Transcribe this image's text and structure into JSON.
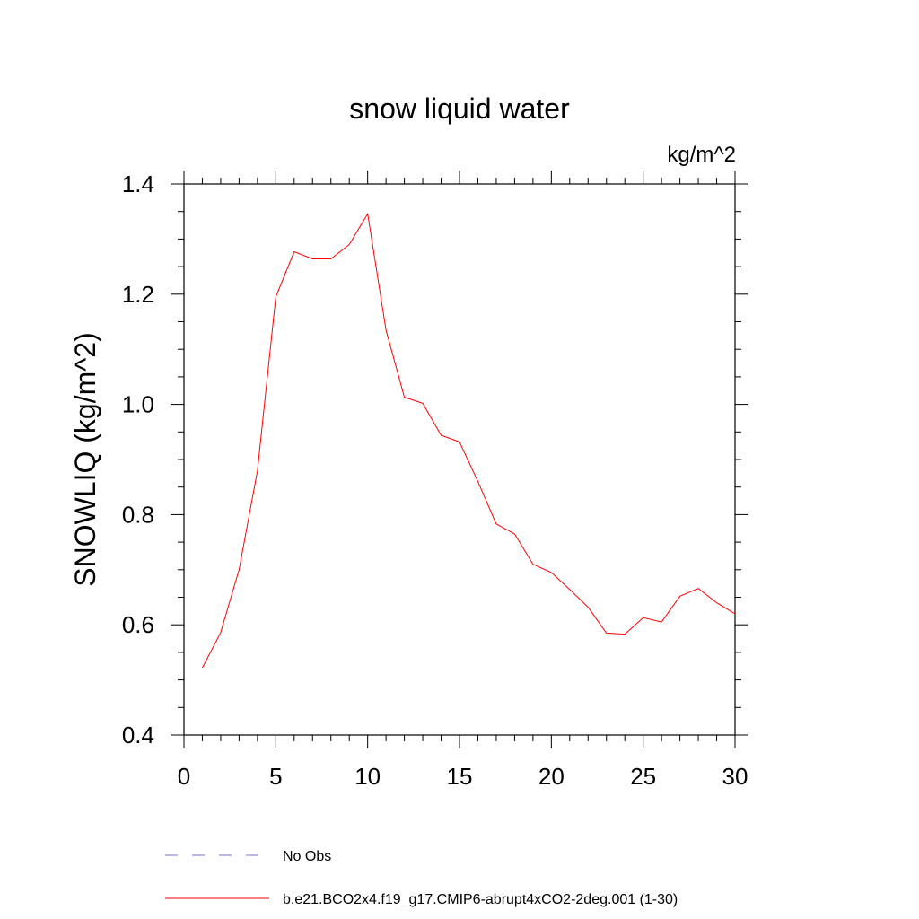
{
  "chart_data": {
    "type": "line",
    "title": "snow liquid water",
    "units_label": "kg/m^2",
    "ylabel": "SNOWLIQ  (kg/m^2)",
    "xlabel": "",
    "xlim": [
      0,
      30
    ],
    "ylim": [
      0.4,
      1.4
    ],
    "x_ticks": [
      0,
      5,
      10,
      15,
      20,
      25,
      30
    ],
    "y_ticks": [
      0.4,
      0.6,
      0.8,
      1.0,
      1.2,
      1.4
    ],
    "y_tick_labels": [
      "0.4",
      "0.6",
      "0.8",
      "1.0",
      "1.2",
      "1.4"
    ],
    "grid": false,
    "legend_position": "bottom",
    "legend": [
      {
        "label": "No Obs",
        "color": "#7b6fc4",
        "style": "dashed"
      },
      {
        "label": "b.e21.BCO2x4.f19_g17.CMIP6-abrupt4xCO2-2deg.001 (1-30)",
        "color": "#ff0000",
        "style": "solid"
      }
    ],
    "series": [
      {
        "name": "b.e21.BCO2x4.f19_g17.CMIP6-abrupt4xCO2-2deg.001 (1-30)",
        "color": "#ff0000",
        "x": [
          1,
          2,
          3,
          4,
          5,
          6,
          7,
          8,
          9,
          10,
          11,
          12,
          13,
          14,
          15,
          16,
          17,
          18,
          19,
          20,
          21,
          22,
          23,
          24,
          25,
          26,
          27,
          28,
          29,
          30
        ],
        "y": [
          0.522,
          0.586,
          0.7,
          0.88,
          1.195,
          1.277,
          1.264,
          1.264,
          1.29,
          1.346,
          1.135,
          1.013,
          1.002,
          0.944,
          0.932,
          0.86,
          0.783,
          0.765,
          0.71,
          0.695,
          0.664,
          0.632,
          0.585,
          0.583,
          0.613,
          0.605,
          0.652,
          0.666,
          0.64,
          0.62
        ]
      }
    ]
  }
}
